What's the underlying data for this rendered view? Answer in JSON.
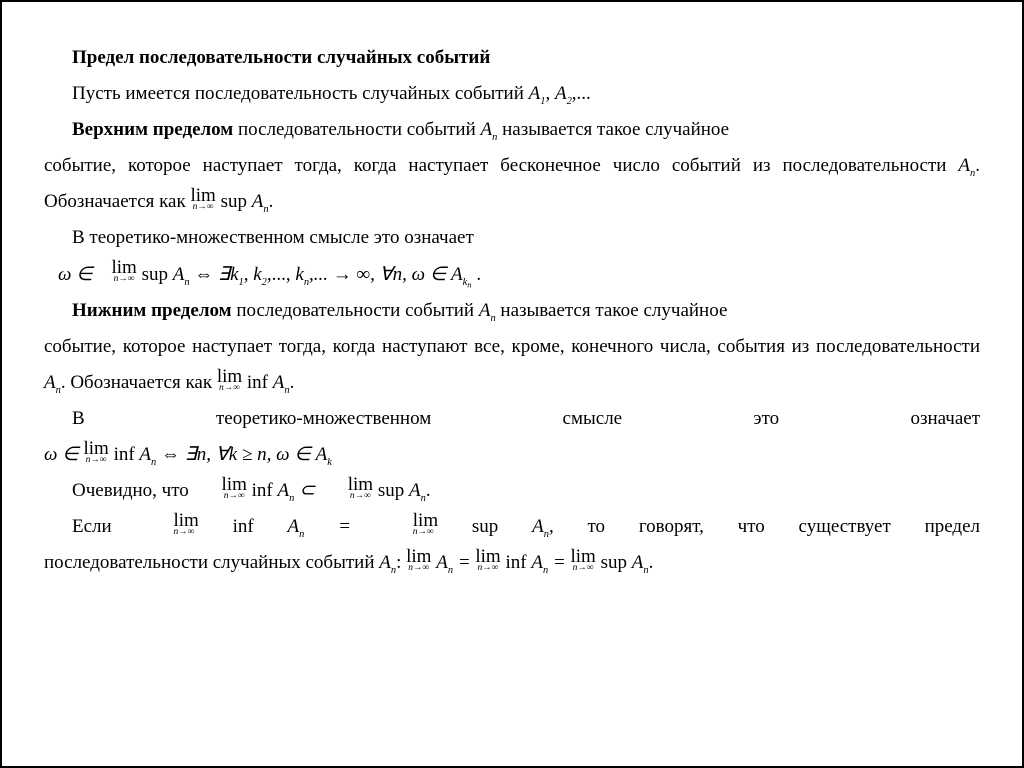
{
  "title": "Предел последовательности случайных событий",
  "p1_a": "Пусть имеется последовательность случайных событий ",
  "p1_b": "A",
  "p1_c": ", ",
  "p1_d": "A",
  "p1_e": ",...",
  "p2_a": "Верхним пределом",
  "p2_b": " последовательности событий ",
  "p2_c": "A",
  "p2_d": " называется такое случайное",
  "p3": "событие, которое наступает тогда, когда наступает бесконечное число событий из последовательности ",
  "p3_b": "A",
  "p3_c": ". Обозначается как ",
  "p3_d": ".",
  "p4": "В теоретико-множественном смысле это означает",
  "f1_a": "ω ∈ ",
  "f1_b": " ⇔ ∃",
  "f1_c": "k",
  "f1_d": ", ",
  "f1_e": "k",
  "f1_f": ",..., ",
  "f1_g": "k",
  "f1_h": ",... → ∞, ∀",
  "f1_i": "n",
  "f1_j": ", ω ∈ ",
  "f1_k": "A",
  "f1_l": " .",
  "p5_a": "Нижним пределом",
  "p5_b": " последовательности событий ",
  "p5_c": "A",
  "p5_d": " называется такое случайное",
  "p6": "событие, которое наступает тогда, когда наступают все, кроме, конечного числа, события из последовательности ",
  "p6_b": "A",
  "p6_c": ". Обозначается как ",
  "p6_d": ".",
  "p7": "В          теоретико-множественном          смысле          это          означает",
  "f2_a": "ω ∈ ",
  "f2_b": " ⇔ ∃",
  "f2_c": "n",
  "f2_d": ", ∀",
  "f2_e": "k",
  "f2_f": " ≥ ",
  "f2_g": "n",
  "f2_h": ", ω ∈ ",
  "f2_i": "A",
  "p8_a": "Очевидно, что  ",
  "p8_b": " ⊂ ",
  "p8_c": ".",
  "p9_a": "Если   ",
  "p9_b": " = ",
  "p9_c": ",   то   говорят,   что   существует   предел",
  "p10_a": "последовательности случайных событий ",
  "p10_b": "A",
  "p10_c": ": ",
  "p10_d": " = ",
  "p10_e": " = ",
  "p10_f": ".",
  "lim_label": "lim",
  "ninf": "n→∞",
  "sup": "sup",
  "inf": "inf",
  "An": "A",
  "sub_n": "n",
  "sub_1": "1",
  "sub_2": "2",
  "sub_k": "k",
  "sub_kn": "n"
}
